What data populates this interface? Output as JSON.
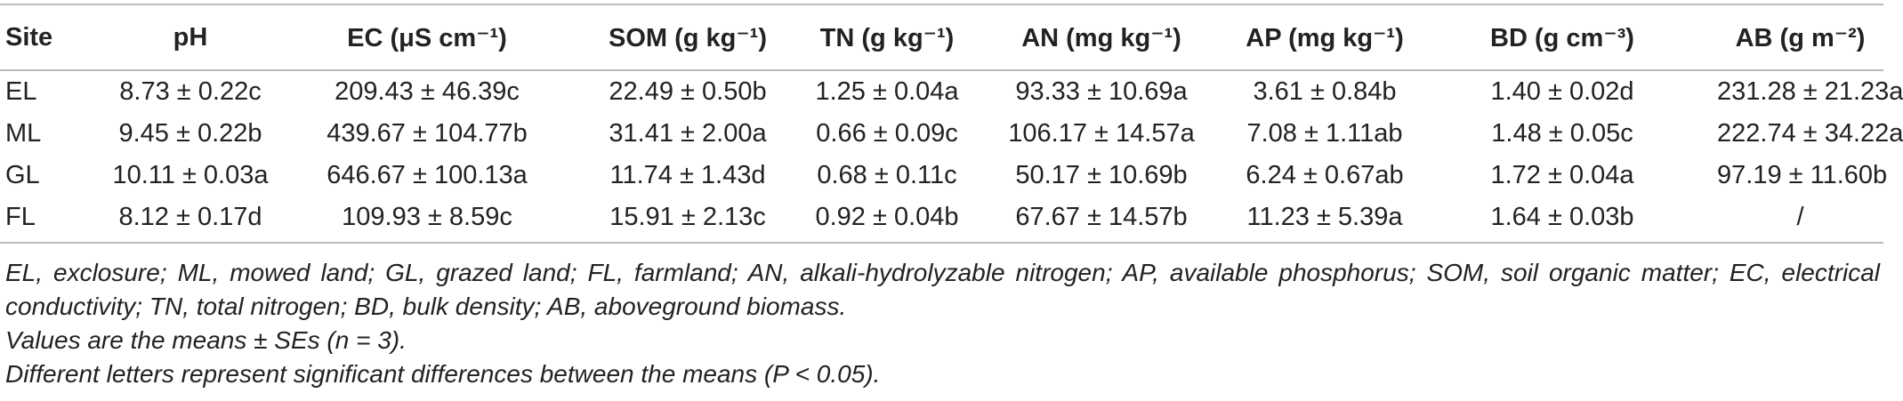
{
  "table": {
    "header": [
      "Site",
      "pH",
      "EC (μS cm⁻¹)",
      "SOM (g kg⁻¹)",
      "TN (g kg⁻¹)",
      "AN (mg kg⁻¹)",
      "AP (mg kg⁻¹)",
      "BD (g cm⁻³)",
      "AB (g m⁻²)"
    ],
    "rows": [
      [
        "EL",
        "8.73 ± 0.22c",
        "209.43 ± 46.39c",
        "22.49 ± 0.50b",
        "1.25 ± 0.04a",
        "93.33 ± 10.69a",
        "3.61 ± 0.84b",
        "1.40 ± 0.02d",
        "231.28 ± 21.23a"
      ],
      [
        "ML",
        "9.45 ± 0.22b",
        "439.67 ± 104.77b",
        "31.41 ± 2.00a",
        "0.66 ± 0.09c",
        "106.17 ± 14.57a",
        "7.08 ± 1.11ab",
        "1.48 ± 0.05c",
        "222.74 ± 34.22a"
      ],
      [
        "GL",
        "10.11 ± 0.03a",
        "646.67 ± 100.13a",
        "11.74 ± 1.43d",
        "0.68 ± 0.11c",
        "50.17 ± 10.69b",
        "6.24 ± 0.67ab",
        "1.72 ± 0.04a",
        "97.19 ± 11.60b"
      ],
      [
        "FL",
        "8.12 ± 0.17d",
        "109.93 ± 8.59c",
        "15.91 ± 2.13c",
        "0.92 ± 0.04b",
        "67.67 ± 14.57b",
        "11.23 ± 5.39a",
        "1.64 ± 0.03b",
        "/"
      ]
    ]
  },
  "notes": [
    "EL, exclosure; ML, mowed land; GL, grazed land; FL, farmland; AN, alkali-hydrolyzable nitrogen; AP, available phosphorus; SOM, soil organic matter; EC, electrical conductivity; TN, total nitrogen; BD, bulk density; AB, aboveground biomass.",
    "Values are the means ± SEs (n = 3).",
    "Different letters represent significant differences between the means (P < 0.05)."
  ]
}
